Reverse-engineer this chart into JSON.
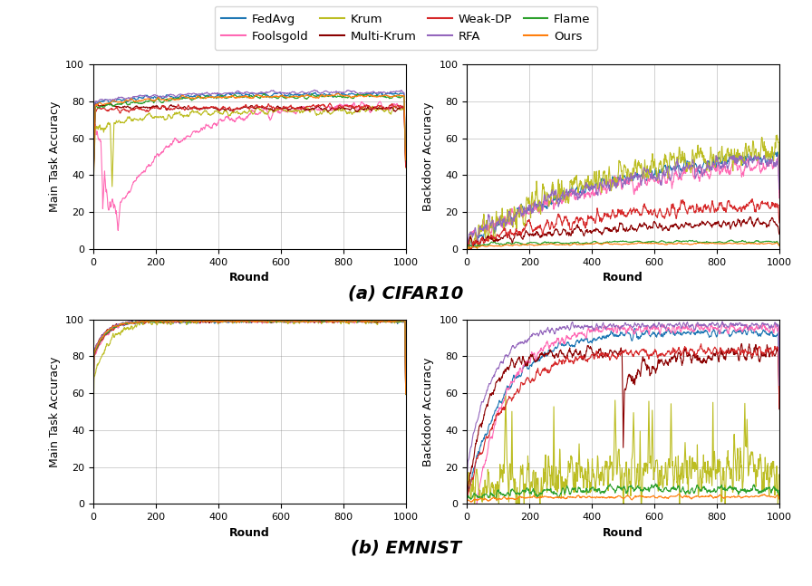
{
  "legend_entries": [
    "FedAvg",
    "Foolsgold",
    "Krum",
    "Multi-Krum",
    "Weak-DP",
    "RFA",
    "Flame",
    "Ours"
  ],
  "colors": {
    "FedAvg": "#1f77b4",
    "Foolsgold": "#ff69b4",
    "Krum": "#bcbd22",
    "Multi-Krum": "#8B0000",
    "Weak-DP": "#d62728",
    "RFA": "#9467bd",
    "Flame": "#2ca02c",
    "Ours": "#ff7f0e"
  },
  "xlabel": "Round",
  "ylabel_main": "Main Task Accuracy",
  "ylabel_back": "Backdoor Accuracy",
  "subtitle_cifar": "(a) CIFAR10",
  "subtitle_emnist": "(b) EMNIST",
  "ylim": [
    0,
    100
  ],
  "xlim": [
    0,
    1000
  ],
  "seed": 42,
  "linewidth": 0.8
}
